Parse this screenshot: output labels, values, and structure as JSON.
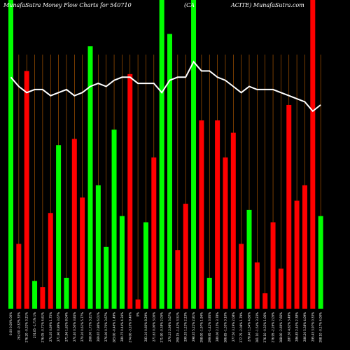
{
  "chart_data": {
    "type": "bar",
    "title": "MunafaSutra  Money Flow  Charts for 540710",
    "title_right": "ACITE) MunafaSutra.com",
    "title_mid": "(CA",
    "colors": {
      "up": "#00ff00",
      "down": "#ff0000",
      "line": "#ffffff",
      "grid": "#c06000",
      "bg": "#000000"
    },
    "bars": [
      {
        "c": "G",
        "v": 100,
        "label": "0.00 0.00% 00%"
      },
      {
        "c": "R",
        "v": 21,
        "label": "262.00 -0.32% 33%"
      },
      {
        "c": "R",
        "v": 77,
        "label": "276.20 -0.32% 3.21%"
      },
      {
        "c": "G",
        "v": 9,
        "label": "274.05 -1.71% 1%"
      },
      {
        "c": "R",
        "v": 7,
        "label": "276.05 -0.71% 4.61%"
      },
      {
        "c": "R",
        "v": 31,
        "label": "274.05 0.69% 1.75%"
      },
      {
        "c": "G",
        "v": 53,
        "label": "271.90 0.89% 3.67%"
      },
      {
        "c": "G",
        "v": 10,
        "label": "271.96 1.62% 8.04%"
      },
      {
        "c": "R",
        "v": 55,
        "label": "274.40 0.50% 3.84%"
      },
      {
        "c": "R",
        "v": 36,
        "label": "270.20 0.61% 5.77%"
      },
      {
        "c": "G",
        "v": 85,
        "label": "268.00 1.73% 3.21%"
      },
      {
        "c": "G",
        "v": 40,
        "label": "269.65 2.86% 6.01%"
      },
      {
        "c": "G",
        "v": 20,
        "label": "276.00 0.70% 3.67%"
      },
      {
        "c": "G",
        "v": 58,
        "label": "283.00 -0.46% 1.49%"
      },
      {
        "c": "G",
        "v": 30,
        "label": "280.75 0.44% 4.34%"
      },
      {
        "c": "R",
        "v": 76,
        "label": "274.00 -3.10% 9.40%"
      },
      {
        "c": "R",
        "v": 3,
        "label": "0%"
      },
      {
        "c": "G",
        "v": 28,
        "label": "283.10 0.60% 8.29%"
      },
      {
        "c": "R",
        "v": 49,
        "label": "271.63 0.00% 3.00%"
      },
      {
        "c": "G",
        "v": 100,
        "label": "271.90 -0.38% 2.05%"
      },
      {
        "c": "G",
        "v": 89,
        "label": "270.15 2.98% 3.67%"
      },
      {
        "c": "R",
        "v": 19,
        "label": "299.15 -1.42% 3.51%"
      },
      {
        "c": "R",
        "v": 34,
        "label": "290.35 1.23% 2.23%"
      },
      {
        "c": "G",
        "v": 100,
        "label": "298.35 5.22% 2.81%"
      },
      {
        "c": "R",
        "v": 61,
        "label": "298.00 -1.97% 1.94%"
      },
      {
        "c": "G",
        "v": 10,
        "label": "299.95 -1.42% 3.95%"
      },
      {
        "c": "R",
        "v": 61,
        "label": "280.00 2.15% 3.78%"
      },
      {
        "c": "R",
        "v": 49,
        "label": "286.65 -1.35% 3.10%"
      },
      {
        "c": "R",
        "v": 57,
        "label": "277.50 3.19% 2.08%"
      },
      {
        "c": "R",
        "v": 21,
        "label": "277.75 -2.08% 1.79%"
      },
      {
        "c": "G",
        "v": 32,
        "label": "278.40 1.54% 4.66%"
      },
      {
        "c": "R",
        "v": 15,
        "label": "281.10 -1.54% 3.23%"
      },
      {
        "c": "R",
        "v": 5,
        "label": "276.10 -0.33% 1.06%"
      },
      {
        "c": "R",
        "v": 28,
        "label": "276.95 -2.26% 2.05%"
      },
      {
        "c": "R",
        "v": 13,
        "label": "288.00 -2.69% 7.66%"
      },
      {
        "c": "R",
        "v": 66,
        "label": "287.30 4.62% 3.49%"
      },
      {
        "c": "R",
        "v": 35,
        "label": "286.85 2.40% 2.38%"
      },
      {
        "c": "R",
        "v": 40,
        "label": "286.20 5.38% 4.09%"
      },
      {
        "c": "R",
        "v": 100,
        "label": "295.45 3.97% 0.33%"
      },
      {
        "c": "G",
        "v": 30,
        "label": "298.10 -0.17% 4.00%"
      }
    ],
    "line": [
      75,
      72,
      70,
      71,
      71,
      69,
      70,
      71,
      69,
      70,
      72,
      73,
      72,
      74,
      75,
      75,
      73,
      73,
      73,
      70,
      74,
      75,
      75,
      80,
      77,
      77,
      75,
      74,
      72,
      70,
      72,
      71,
      71,
      71,
      70,
      69,
      68,
      67,
      64,
      66
    ]
  }
}
